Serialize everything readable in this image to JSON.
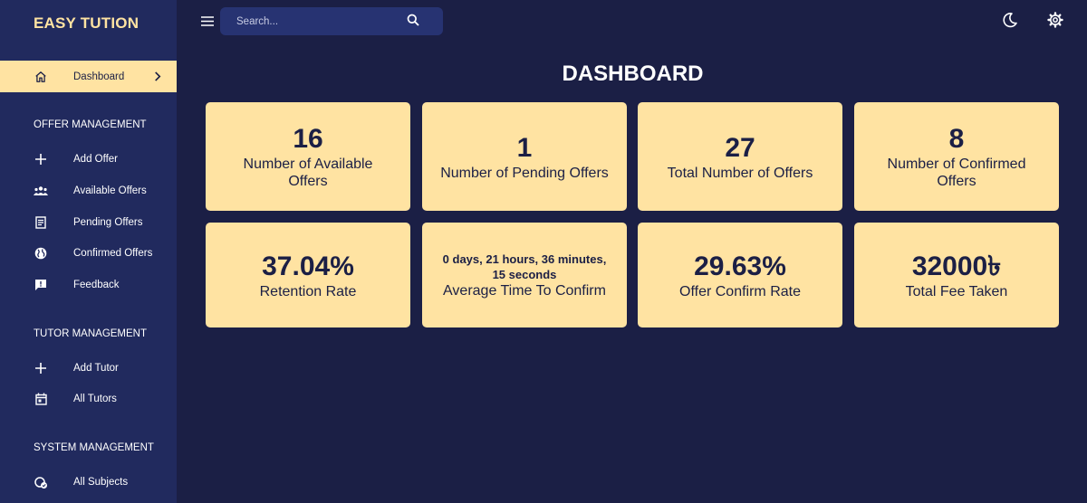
{
  "app": {
    "brand": "EASY TUTION"
  },
  "sidebar": {
    "active": {
      "label": "Dashboard",
      "icon": "home-icon"
    },
    "sections": [
      {
        "title": "OFFER MANAGEMENT",
        "items": [
          {
            "label": "Add Offer",
            "icon": "plus-icon"
          },
          {
            "label": "Available Offers",
            "icon": "group-icon"
          },
          {
            "label": "Pending Offers",
            "icon": "receipt-icon"
          },
          {
            "label": "Confirmed Offers",
            "icon": "globe-icon"
          },
          {
            "label": "Feedback",
            "icon": "feedback-icon"
          }
        ]
      },
      {
        "title": "TUTOR MANAGEMENT",
        "items": [
          {
            "label": "Add Tutor",
            "icon": "plus-icon"
          },
          {
            "label": "All Tutors",
            "icon": "calendar-icon"
          }
        ]
      },
      {
        "title": "SYSTEM MANAGEMENT",
        "items": [
          {
            "label": "All Subjects",
            "icon": "subjects-icon"
          }
        ]
      }
    ]
  },
  "topbar": {
    "search_placeholder": "Search...",
    "icons": [
      "menu-icon",
      "search-icon",
      "moon-icon",
      "gear-icon"
    ]
  },
  "main": {
    "title": "DASHBOARD",
    "cards": [
      {
        "value": "16",
        "label": "Number of Available Offers"
      },
      {
        "value": "1",
        "label": "Number of Pending Offers"
      },
      {
        "value": "27",
        "label": "Total Number of Offers"
      },
      {
        "value": "8",
        "label": "Number of Confirmed Offers"
      },
      {
        "value": "37.04%",
        "label": "Retention Rate"
      },
      {
        "value": "0 days, 21 hours, 36 minutes, 15 seconds",
        "label": "Average Time To Confirm"
      },
      {
        "value": "29.63%",
        "label": "Offer Confirm Rate"
      },
      {
        "value": "32000৳",
        "label": "Total Fee Taken"
      }
    ]
  },
  "colors": {
    "background": "#1b1f45",
    "sidebar": "#212a5e",
    "accent": "#ffe3a2",
    "search": "#273372"
  }
}
